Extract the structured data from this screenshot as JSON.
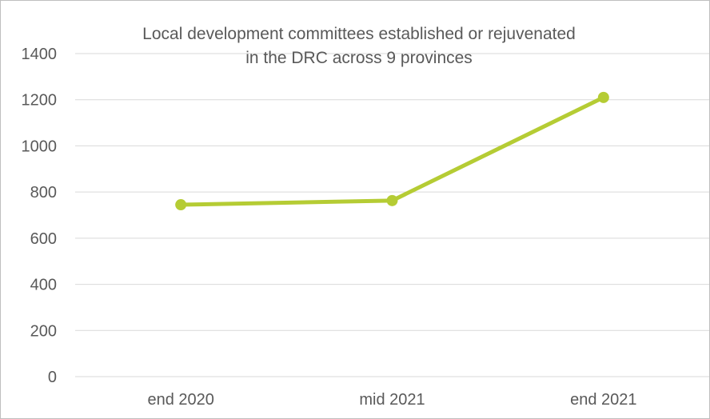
{
  "chart_data": {
    "type": "line",
    "title_lines": [
      "Local development committees established or rejuvenated",
      "in the DRC across 9 provinces"
    ],
    "xlabel": "",
    "ylabel": "",
    "categories": [
      "end 2020",
      "mid 2021",
      "end 2021"
    ],
    "series": [
      {
        "values": [
          745,
          763,
          1210
        ]
      }
    ],
    "y_ticks": [
      "0",
      "200",
      "400",
      "600",
      "800",
      "1000",
      "1200",
      "1400"
    ],
    "ylim": [
      0,
      1400
    ],
    "grid": true,
    "legend": "none",
    "colors": {
      "line": "#b5cc34",
      "grid": "#d9d9d9",
      "axis": "#d9d9d9",
      "text": "#595959"
    }
  }
}
